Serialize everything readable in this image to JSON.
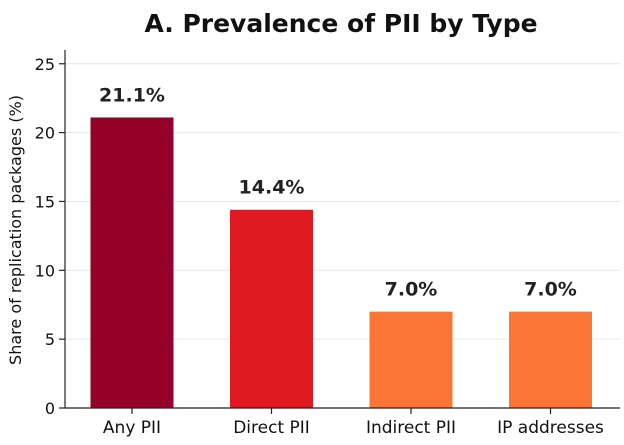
{
  "chart_data": {
    "type": "bar",
    "title": "A. Prevalence of PII by Type",
    "xlabel": "",
    "ylabel": "Share of replication packages (%)",
    "categories": [
      "Any PII",
      "Direct PII",
      "Indirect PII",
      "IP addresses"
    ],
    "values": [
      21.1,
      14.4,
      7.0,
      7.0
    ],
    "value_labels": [
      "21.1%",
      "14.4%",
      "7.0%",
      "7.0%"
    ],
    "colors": [
      "#950028",
      "#df1a20",
      "#fb7535",
      "#fb7535"
    ],
    "ylim": [
      0,
      26
    ],
    "yticks": [
      0,
      5,
      10,
      15,
      20,
      25
    ],
    "grid": true,
    "legend": false
  }
}
